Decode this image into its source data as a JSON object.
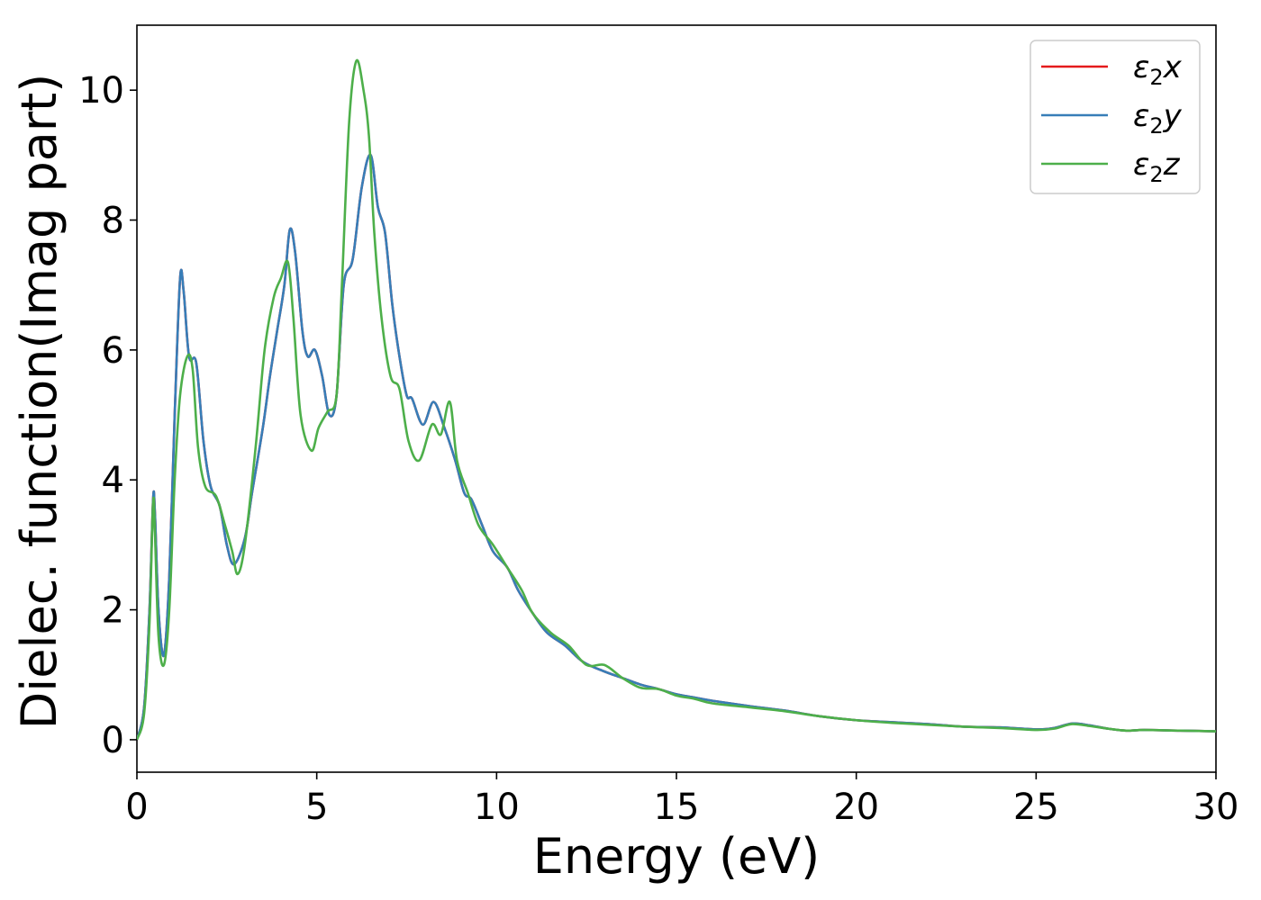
{
  "chart_data": {
    "type": "line",
    "xlabel": "Energy (eV)",
    "ylabel": "Dielec. function(Imag part)",
    "xlim": [
      0,
      30
    ],
    "ylim": [
      -0.5,
      11
    ],
    "xticks": [
      0,
      5,
      10,
      15,
      20,
      25,
      30
    ],
    "yticks": [
      0,
      2,
      4,
      6,
      8,
      10
    ],
    "grid": false,
    "legend_position": "top-right",
    "series": [
      {
        "name": "ε₂x",
        "legend_main": "ε",
        "legend_sub": "2",
        "legend_tail": "x",
        "color": "#e41a1c",
        "points": [
          [
            0,
            0
          ],
          [
            0.2,
            0.5
          ],
          [
            0.35,
            2.0
          ],
          [
            0.45,
            3.7
          ],
          [
            0.5,
            3.5
          ],
          [
            0.6,
            2.0
          ],
          [
            0.75,
            1.3
          ],
          [
            0.9,
            2.5
          ],
          [
            1.05,
            5.0
          ],
          [
            1.2,
            7.1
          ],
          [
            1.3,
            6.9
          ],
          [
            1.45,
            5.9
          ],
          [
            1.65,
            5.8
          ],
          [
            1.85,
            4.6
          ],
          [
            2.05,
            3.9
          ],
          [
            2.3,
            3.6
          ],
          [
            2.5,
            3.0
          ],
          [
            2.7,
            2.7
          ],
          [
            3.0,
            3.1
          ],
          [
            3.2,
            3.8
          ],
          [
            3.5,
            4.8
          ],
          [
            3.7,
            5.6
          ],
          [
            3.9,
            6.3
          ],
          [
            4.1,
            7.0
          ],
          [
            4.25,
            7.85
          ],
          [
            4.4,
            7.5
          ],
          [
            4.6,
            6.3
          ],
          [
            4.75,
            5.9
          ],
          [
            4.95,
            6.0
          ],
          [
            5.15,
            5.6
          ],
          [
            5.35,
            5.0
          ],
          [
            5.55,
            5.3
          ],
          [
            5.75,
            7.0
          ],
          [
            6.0,
            7.4
          ],
          [
            6.25,
            8.5
          ],
          [
            6.5,
            9.0
          ],
          [
            6.7,
            8.2
          ],
          [
            6.9,
            7.8
          ],
          [
            7.1,
            6.7
          ],
          [
            7.3,
            5.9
          ],
          [
            7.5,
            5.3
          ],
          [
            7.65,
            5.25
          ],
          [
            7.95,
            4.85
          ],
          [
            8.25,
            5.2
          ],
          [
            8.55,
            4.8
          ],
          [
            8.85,
            4.3
          ],
          [
            9.1,
            3.8
          ],
          [
            9.3,
            3.7
          ],
          [
            9.6,
            3.3
          ],
          [
            9.9,
            2.9
          ],
          [
            10.3,
            2.65
          ],
          [
            10.6,
            2.3
          ],
          [
            11.0,
            1.95
          ],
          [
            11.4,
            1.65
          ],
          [
            11.9,
            1.45
          ],
          [
            12.4,
            1.2
          ],
          [
            13.0,
            1.05
          ],
          [
            13.5,
            0.95
          ],
          [
            14.0,
            0.85
          ],
          [
            14.5,
            0.78
          ],
          [
            15.0,
            0.7
          ],
          [
            15.5,
            0.65
          ],
          [
            16.0,
            0.6
          ],
          [
            17.0,
            0.52
          ],
          [
            18.0,
            0.45
          ],
          [
            19.0,
            0.36
          ],
          [
            20.0,
            0.3
          ],
          [
            21.0,
            0.27
          ],
          [
            22.0,
            0.24
          ],
          [
            23.0,
            0.2
          ],
          [
            24.0,
            0.19
          ],
          [
            25.0,
            0.16
          ],
          [
            25.5,
            0.18
          ],
          [
            26.0,
            0.25
          ],
          [
            26.5,
            0.22
          ],
          [
            27.0,
            0.17
          ],
          [
            27.5,
            0.14
          ],
          [
            28.0,
            0.15
          ],
          [
            29.0,
            0.14
          ],
          [
            30.0,
            0.13
          ]
        ]
      },
      {
        "name": "ε₂y",
        "legend_main": "ε",
        "legend_sub": "2",
        "legend_tail": "y",
        "color": "#377eb8",
        "points": [
          [
            0,
            0
          ],
          [
            0.2,
            0.5
          ],
          [
            0.35,
            2.0
          ],
          [
            0.45,
            3.7
          ],
          [
            0.5,
            3.5
          ],
          [
            0.6,
            2.0
          ],
          [
            0.75,
            1.3
          ],
          [
            0.9,
            2.5
          ],
          [
            1.05,
            5.0
          ],
          [
            1.2,
            7.1
          ],
          [
            1.3,
            6.9
          ],
          [
            1.45,
            5.9
          ],
          [
            1.65,
            5.8
          ],
          [
            1.85,
            4.6
          ],
          [
            2.05,
            3.9
          ],
          [
            2.3,
            3.6
          ],
          [
            2.5,
            3.0
          ],
          [
            2.7,
            2.7
          ],
          [
            3.0,
            3.1
          ],
          [
            3.2,
            3.8
          ],
          [
            3.5,
            4.8
          ],
          [
            3.7,
            5.6
          ],
          [
            3.9,
            6.3
          ],
          [
            4.1,
            7.0
          ],
          [
            4.25,
            7.85
          ],
          [
            4.4,
            7.5
          ],
          [
            4.6,
            6.3
          ],
          [
            4.75,
            5.9
          ],
          [
            4.95,
            6.0
          ],
          [
            5.15,
            5.6
          ],
          [
            5.35,
            5.0
          ],
          [
            5.55,
            5.3
          ],
          [
            5.75,
            7.0
          ],
          [
            6.0,
            7.4
          ],
          [
            6.25,
            8.5
          ],
          [
            6.5,
            9.0
          ],
          [
            6.7,
            8.2
          ],
          [
            6.9,
            7.8
          ],
          [
            7.1,
            6.7
          ],
          [
            7.3,
            5.9
          ],
          [
            7.5,
            5.3
          ],
          [
            7.65,
            5.25
          ],
          [
            7.95,
            4.85
          ],
          [
            8.25,
            5.2
          ],
          [
            8.55,
            4.8
          ],
          [
            8.85,
            4.3
          ],
          [
            9.1,
            3.8
          ],
          [
            9.3,
            3.7
          ],
          [
            9.6,
            3.3
          ],
          [
            9.9,
            2.9
          ],
          [
            10.3,
            2.65
          ],
          [
            10.6,
            2.3
          ],
          [
            11.0,
            1.95
          ],
          [
            11.4,
            1.65
          ],
          [
            11.9,
            1.45
          ],
          [
            12.4,
            1.2
          ],
          [
            13.0,
            1.05
          ],
          [
            13.5,
            0.95
          ],
          [
            14.0,
            0.85
          ],
          [
            14.5,
            0.78
          ],
          [
            15.0,
            0.7
          ],
          [
            15.5,
            0.65
          ],
          [
            16.0,
            0.6
          ],
          [
            17.0,
            0.52
          ],
          [
            18.0,
            0.45
          ],
          [
            19.0,
            0.36
          ],
          [
            20.0,
            0.3
          ],
          [
            21.0,
            0.27
          ],
          [
            22.0,
            0.24
          ],
          [
            23.0,
            0.2
          ],
          [
            24.0,
            0.19
          ],
          [
            25.0,
            0.16
          ],
          [
            25.5,
            0.18
          ],
          [
            26.0,
            0.25
          ],
          [
            26.5,
            0.22
          ],
          [
            27.0,
            0.17
          ],
          [
            27.5,
            0.14
          ],
          [
            28.0,
            0.15
          ],
          [
            29.0,
            0.14
          ],
          [
            30.0,
            0.13
          ]
        ]
      },
      {
        "name": "ε₂z",
        "legend_main": "ε",
        "legend_sub": "2",
        "legend_tail": "z",
        "color": "#4daf4a",
        "points": [
          [
            0,
            0
          ],
          [
            0.2,
            0.4
          ],
          [
            0.35,
            1.8
          ],
          [
            0.45,
            3.65
          ],
          [
            0.5,
            3.2
          ],
          [
            0.6,
            1.6
          ],
          [
            0.75,
            1.15
          ],
          [
            0.9,
            2.0
          ],
          [
            1.05,
            4.0
          ],
          [
            1.2,
            5.3
          ],
          [
            1.4,
            5.9
          ],
          [
            1.55,
            5.7
          ],
          [
            1.7,
            4.5
          ],
          [
            1.9,
            3.9
          ],
          [
            2.2,
            3.75
          ],
          [
            2.45,
            3.3
          ],
          [
            2.65,
            2.9
          ],
          [
            2.8,
            2.55
          ],
          [
            3.0,
            3.0
          ],
          [
            3.3,
            4.5
          ],
          [
            3.55,
            6.0
          ],
          [
            3.8,
            6.8
          ],
          [
            4.0,
            7.1
          ],
          [
            4.2,
            7.35
          ],
          [
            4.35,
            6.5
          ],
          [
            4.55,
            5.0
          ],
          [
            4.85,
            4.45
          ],
          [
            5.05,
            4.8
          ],
          [
            5.3,
            5.05
          ],
          [
            5.55,
            5.3
          ],
          [
            5.7,
            7.0
          ],
          [
            5.9,
            9.5
          ],
          [
            6.1,
            10.45
          ],
          [
            6.3,
            10.0
          ],
          [
            6.45,
            9.3
          ],
          [
            6.6,
            7.8
          ],
          [
            6.8,
            6.5
          ],
          [
            7.05,
            5.6
          ],
          [
            7.3,
            5.4
          ],
          [
            7.55,
            4.6
          ],
          [
            7.85,
            4.3
          ],
          [
            8.2,
            4.85
          ],
          [
            8.45,
            4.7
          ],
          [
            8.7,
            5.2
          ],
          [
            8.9,
            4.3
          ],
          [
            9.2,
            3.8
          ],
          [
            9.5,
            3.3
          ],
          [
            9.9,
            3.0
          ],
          [
            10.3,
            2.65
          ],
          [
            10.7,
            2.3
          ],
          [
            11.0,
            1.95
          ],
          [
            11.5,
            1.65
          ],
          [
            12.0,
            1.45
          ],
          [
            12.5,
            1.15
          ],
          [
            13.0,
            1.15
          ],
          [
            13.5,
            0.95
          ],
          [
            14.0,
            0.8
          ],
          [
            14.5,
            0.78
          ],
          [
            15.0,
            0.68
          ],
          [
            15.5,
            0.63
          ],
          [
            16.0,
            0.56
          ],
          [
            17.0,
            0.5
          ],
          [
            18.0,
            0.44
          ],
          [
            19.0,
            0.36
          ],
          [
            20.0,
            0.3
          ],
          [
            21.0,
            0.26
          ],
          [
            22.0,
            0.23
          ],
          [
            23.0,
            0.2
          ],
          [
            24.0,
            0.18
          ],
          [
            25.0,
            0.15
          ],
          [
            25.5,
            0.17
          ],
          [
            26.0,
            0.24
          ],
          [
            26.5,
            0.21
          ],
          [
            27.0,
            0.17
          ],
          [
            27.5,
            0.14
          ],
          [
            28.0,
            0.15
          ],
          [
            29.0,
            0.14
          ],
          [
            30.0,
            0.13
          ]
        ]
      }
    ]
  }
}
